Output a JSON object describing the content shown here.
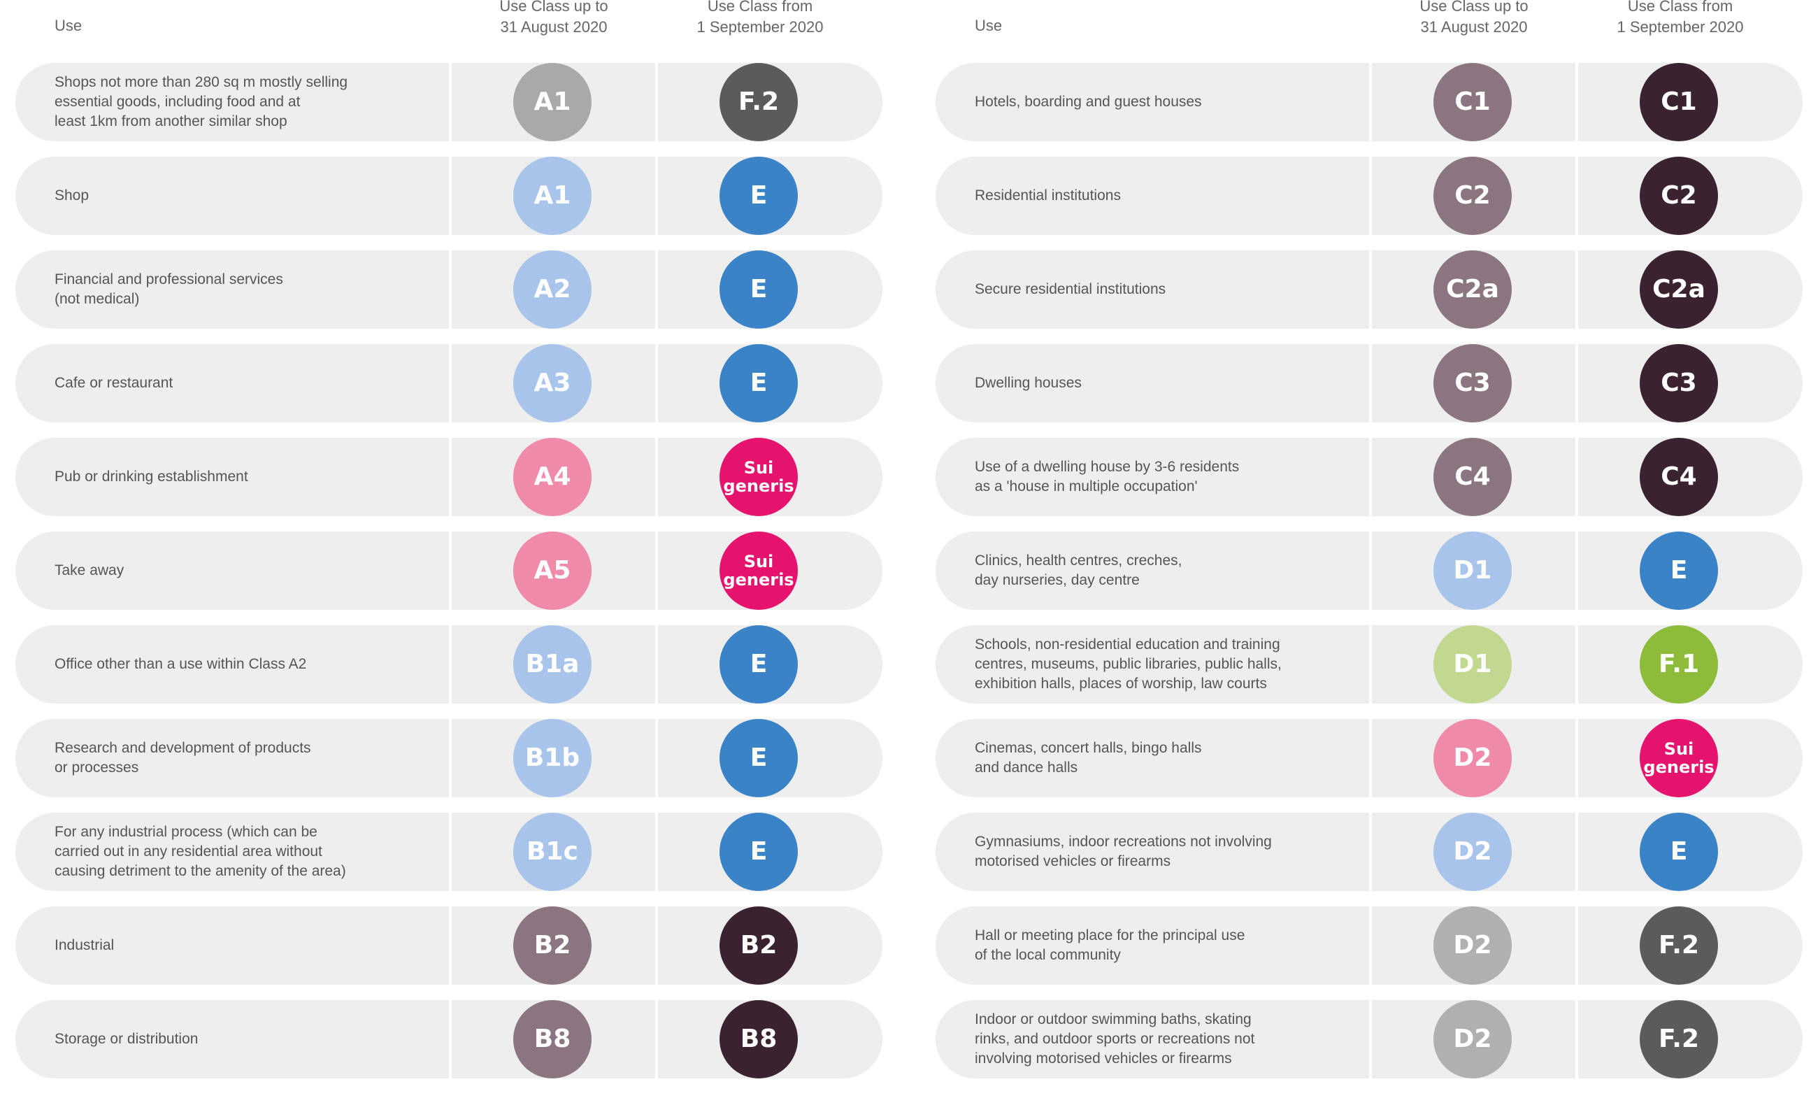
{
  "header": {
    "use": "Use",
    "old_col": "Use Class up to\n31 August 2020",
    "new_col": "Use Class from\n1 September 2020"
  },
  "colors": {
    "A1_light": "#a9a9a9",
    "shop_blue": "#a8c4ea",
    "blue_E": "#3b83c7",
    "pink_old": "#ef8aa8",
    "sui_pink": "#e6136e",
    "mauve": "#8a7580",
    "dark_plum": "#3b2230",
    "F2_grey": "#5b5b5b",
    "D1_green_light": "#c2d891",
    "F1_green": "#8dbb3a",
    "D2_grey": "#b0b0b0"
  },
  "left_rows": [
    {
      "use": "Shops not more than 280 sq m mostly selling\nessential goods, including food and at\nleast 1km from another similar shop",
      "old": "A1",
      "old_color": "#a9a9a9",
      "new": "F.2",
      "new_color": "#5b5b5b"
    },
    {
      "use": "Shop",
      "old": "A1",
      "old_color": "#a8c4ea",
      "new": "E",
      "new_color": "#3b83c7"
    },
    {
      "use": "Financial and professional services\n(not medical)",
      "old": "A2",
      "old_color": "#a8c4ea",
      "new": "E",
      "new_color": "#3b83c7"
    },
    {
      "use": "Cafe or restaurant",
      "old": "A3",
      "old_color": "#a8c4ea",
      "new": "E",
      "new_color": "#3b83c7"
    },
    {
      "use": "Pub or drinking establishment",
      "old": "A4",
      "old_color": "#ef8aa8",
      "new": "Sui\ngeneris",
      "new_color": "#e6136e"
    },
    {
      "use": "Take away",
      "old": "A5",
      "old_color": "#ef8aa8",
      "new": "Sui\ngeneris",
      "new_color": "#e6136e"
    },
    {
      "use": "Office other than a use within Class A2",
      "old": "B1a",
      "old_color": "#a8c4ea",
      "new": "E",
      "new_color": "#3b83c7"
    },
    {
      "use": "Research and development of products\nor processes",
      "old": "B1b",
      "old_color": "#a8c4ea",
      "new": "E",
      "new_color": "#3b83c7"
    },
    {
      "use": "For any industrial process (which can be\ncarried out in any residential area without\ncausing detriment to the amenity of the area)",
      "old": "B1c",
      "old_color": "#a8c4ea",
      "new": "E",
      "new_color": "#3b83c7"
    },
    {
      "use": "Industrial",
      "old": "B2",
      "old_color": "#8a7580",
      "new": "B2",
      "new_color": "#3b2230"
    },
    {
      "use": "Storage or distribution",
      "old": "B8",
      "old_color": "#8a7580",
      "new": "B8",
      "new_color": "#3b2230"
    }
  ],
  "right_rows": [
    {
      "use": "Hotels, boarding and guest houses",
      "old": "C1",
      "old_color": "#8a7580",
      "new": "C1",
      "new_color": "#3b2230"
    },
    {
      "use": "Residential institutions",
      "old": "C2",
      "old_color": "#8a7580",
      "new": "C2",
      "new_color": "#3b2230"
    },
    {
      "use": "Secure residential institutions",
      "old": "C2a",
      "old_color": "#8a7580",
      "new": "C2a",
      "new_color": "#3b2230"
    },
    {
      "use": "Dwelling houses",
      "old": "C3",
      "old_color": "#8a7580",
      "new": "C3",
      "new_color": "#3b2230"
    },
    {
      "use": "Use of a dwelling house by 3-6 residents\nas a 'house in multiple occupation'",
      "old": "C4",
      "old_color": "#8a7580",
      "new": "C4",
      "new_color": "#3b2230"
    },
    {
      "use": "Clinics, health centres, creches,\nday nurseries, day centre",
      "old": "D1",
      "old_color": "#a8c4ea",
      "new": "E",
      "new_color": "#3b83c7"
    },
    {
      "use": "Schools, non-residential education and training\ncentres, museums, public libraries, public halls,\nexhibition halls, places of worship, law courts",
      "old": "D1",
      "old_color": "#c2d891",
      "new": "F.1",
      "new_color": "#8dbb3a"
    },
    {
      "use": "Cinemas, concert halls, bingo halls\nand dance halls",
      "old": "D2",
      "old_color": "#ef8aa8",
      "new": "Sui\ngeneris",
      "new_color": "#e6136e"
    },
    {
      "use": "Gymnasiums, indoor recreations not involving\nmotorised vehicles or firearms",
      "old": "D2",
      "old_color": "#a8c4ea",
      "new": "E",
      "new_color": "#3b83c7"
    },
    {
      "use": "Hall or meeting place for the principal use\nof the local community",
      "old": "D2",
      "old_color": "#b0b0b0",
      "new": "F.2",
      "new_color": "#5b5b5b"
    },
    {
      "use": "Indoor or outdoor swimming baths, skating\nrinks, and outdoor sports or recreations not\ninvolving motorised vehicles or firearms",
      "old": "D2",
      "old_color": "#b0b0b0",
      "new": "F.2",
      "new_color": "#5b5b5b"
    }
  ]
}
